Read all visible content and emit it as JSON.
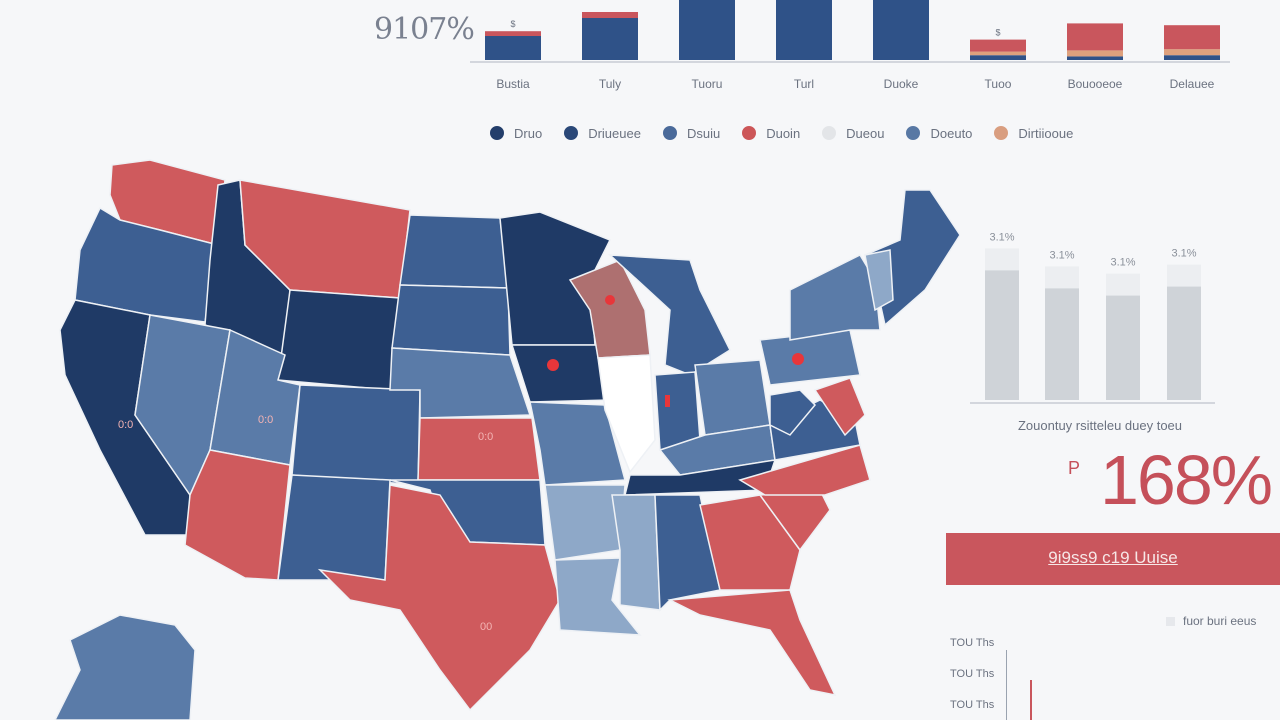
{
  "top_percent": "9107%",
  "top_chart": {
    "categories": [
      "Bustia",
      "Tuly",
      "Tuoru",
      "Turl",
      "Duoke",
      "Tuoo",
      "Bouooeoe",
      "Delauee"
    ],
    "small_labels": [
      "$",
      "",
      "",
      "",
      "",
      "$",
      "",
      ""
    ],
    "bars": [
      {
        "blue": 40,
        "red": 8,
        "tan": 0
      },
      {
        "blue": 70,
        "red": 10,
        "tan": 0
      },
      {
        "blue": 100,
        "red": 0,
        "tan": 0
      },
      {
        "blue": 100,
        "red": 0,
        "tan": 0
      },
      {
        "blue": 100,
        "red": 0,
        "tan": 0
      },
      {
        "blue": 8,
        "red": 20,
        "tan": 6
      },
      {
        "blue": 6,
        "red": 45,
        "tan": 10
      },
      {
        "blue": 8,
        "red": 40,
        "tan": 10
      }
    ],
    "colors": {
      "blue": "#2f5288",
      "red": "#c9565d",
      "tan": "#dea17d"
    }
  },
  "legend": [
    {
      "label": "Druo",
      "color": "#233e6b"
    },
    {
      "label": "Driueuee",
      "color": "#2a4878"
    },
    {
      "label": "Dsuiu",
      "color": "#4a6a9a"
    },
    {
      "label": "Duoin",
      "color": "#cc5658"
    },
    {
      "label": "Dueou",
      "color": "#e3e5e8"
    },
    {
      "label": "Doeuto",
      "color": "#5878a4"
    },
    {
      "label": "Dirtiiooue",
      "color": "#d99e80"
    }
  ],
  "map_colors": {
    "dark": "#1f3a66",
    "mid": "#3d5f92",
    "light": "#5a7ba8",
    "pale": "#8ea8c8",
    "red": "#cf5a5d",
    "muted_red": "#ae7070",
    "dot": "#e8363a"
  },
  "map_markers": [
    "0:0",
    "0:0",
    "0:0",
    "00"
  ],
  "right_chart": {
    "labels": [
      "3.1%",
      "3.1%",
      "3.1%",
      "3.1%"
    ],
    "values": [
      72,
      62,
      58,
      63
    ],
    "caption": "Zouontuy rsitteleu duey toeu"
  },
  "big_prefix": "P",
  "big_percent": "168%",
  "banner_text": "9i9ss9 c19 Uuise",
  "foot_legend": "fuor buri eeus",
  "mini_axis": [
    "TOU Ths",
    "TOU Ths",
    "TOU Ths"
  ]
}
